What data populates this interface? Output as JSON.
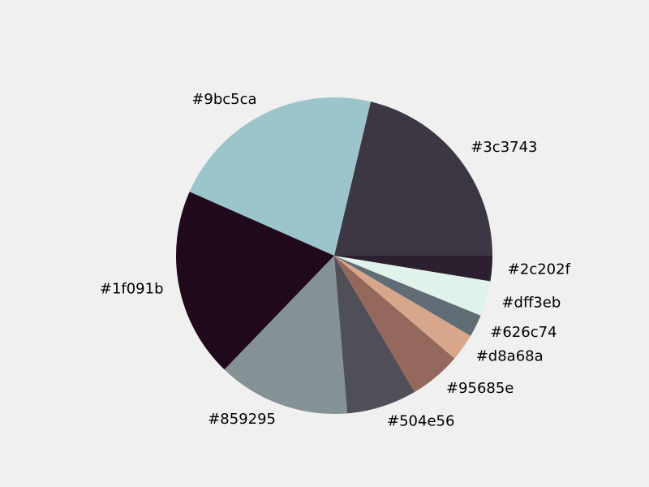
{
  "chart_data": {
    "type": "pie",
    "start_angle_deg": 0,
    "direction": "counterclockwise",
    "legend": "none",
    "slices": [
      {
        "label": "#3c3743",
        "value": 21.4,
        "color": "#3c3743"
      },
      {
        "label": "#9bc5ca",
        "value": 22.2,
        "color": "#9bc5ca"
      },
      {
        "label": "#1f091b",
        "value": 19.5,
        "color": "#1f091b"
      },
      {
        "label": "#859295",
        "value": 13.6,
        "color": "#859295"
      },
      {
        "label": "#504e56",
        "value": 7.2,
        "color": "#504e56"
      },
      {
        "label": "#95685e",
        "value": 5.3,
        "color": "#95685e"
      },
      {
        "label": "#d8a68a",
        "value": 2.8,
        "color": "#d8a68a"
      },
      {
        "label": "#626c74",
        "value": 2.3,
        "color": "#626c74"
      },
      {
        "label": "#dff3eb",
        "value": 3.6,
        "color": "#dff3eb"
      },
      {
        "label": "#2c202f",
        "value": 2.6,
        "color": "#2c202f"
      }
    ]
  }
}
